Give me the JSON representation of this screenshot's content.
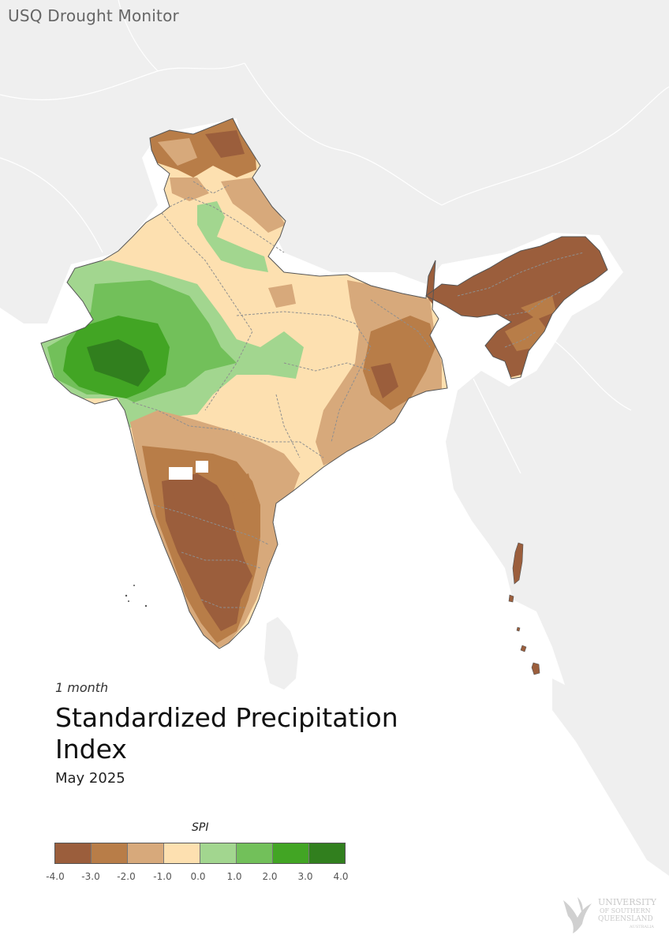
{
  "header": {
    "app_title": "USQ Drought Monitor"
  },
  "map_info": {
    "period": "1 month",
    "title": "Standardized Precipitation Index",
    "date": "May 2025"
  },
  "legend": {
    "title": "SPI",
    "classes": [
      {
        "range": "-4.0 to -3.0",
        "color": "#9b5e3c"
      },
      {
        "range": "-3.0 to -2.0",
        "color": "#b87d48"
      },
      {
        "range": "-2.0 to -1.0",
        "color": "#d7a97b"
      },
      {
        "range": "-1.0 to 0.0",
        "color": "#fde0b0"
      },
      {
        "range": "0.0 to 1.0",
        "color": "#a2d68f"
      },
      {
        "range": "1.0 to 2.0",
        "color": "#72c05a"
      },
      {
        "range": "2.0 to 3.0",
        "color": "#42a524"
      },
      {
        "range": "3.0 to 4.0",
        "color": "#317f1e"
      }
    ],
    "ticks": [
      "-4.0",
      "-3.0",
      "-2.0",
      "-1.0",
      "0.0",
      "1.0",
      "2.0",
      "3.0",
      "4.0"
    ]
  },
  "logo": {
    "line1": "UNIVERSITY",
    "line2": "OF SOUTHERN",
    "line3": "QUEENSLAND",
    "line4": "AUSTRALIA"
  }
}
